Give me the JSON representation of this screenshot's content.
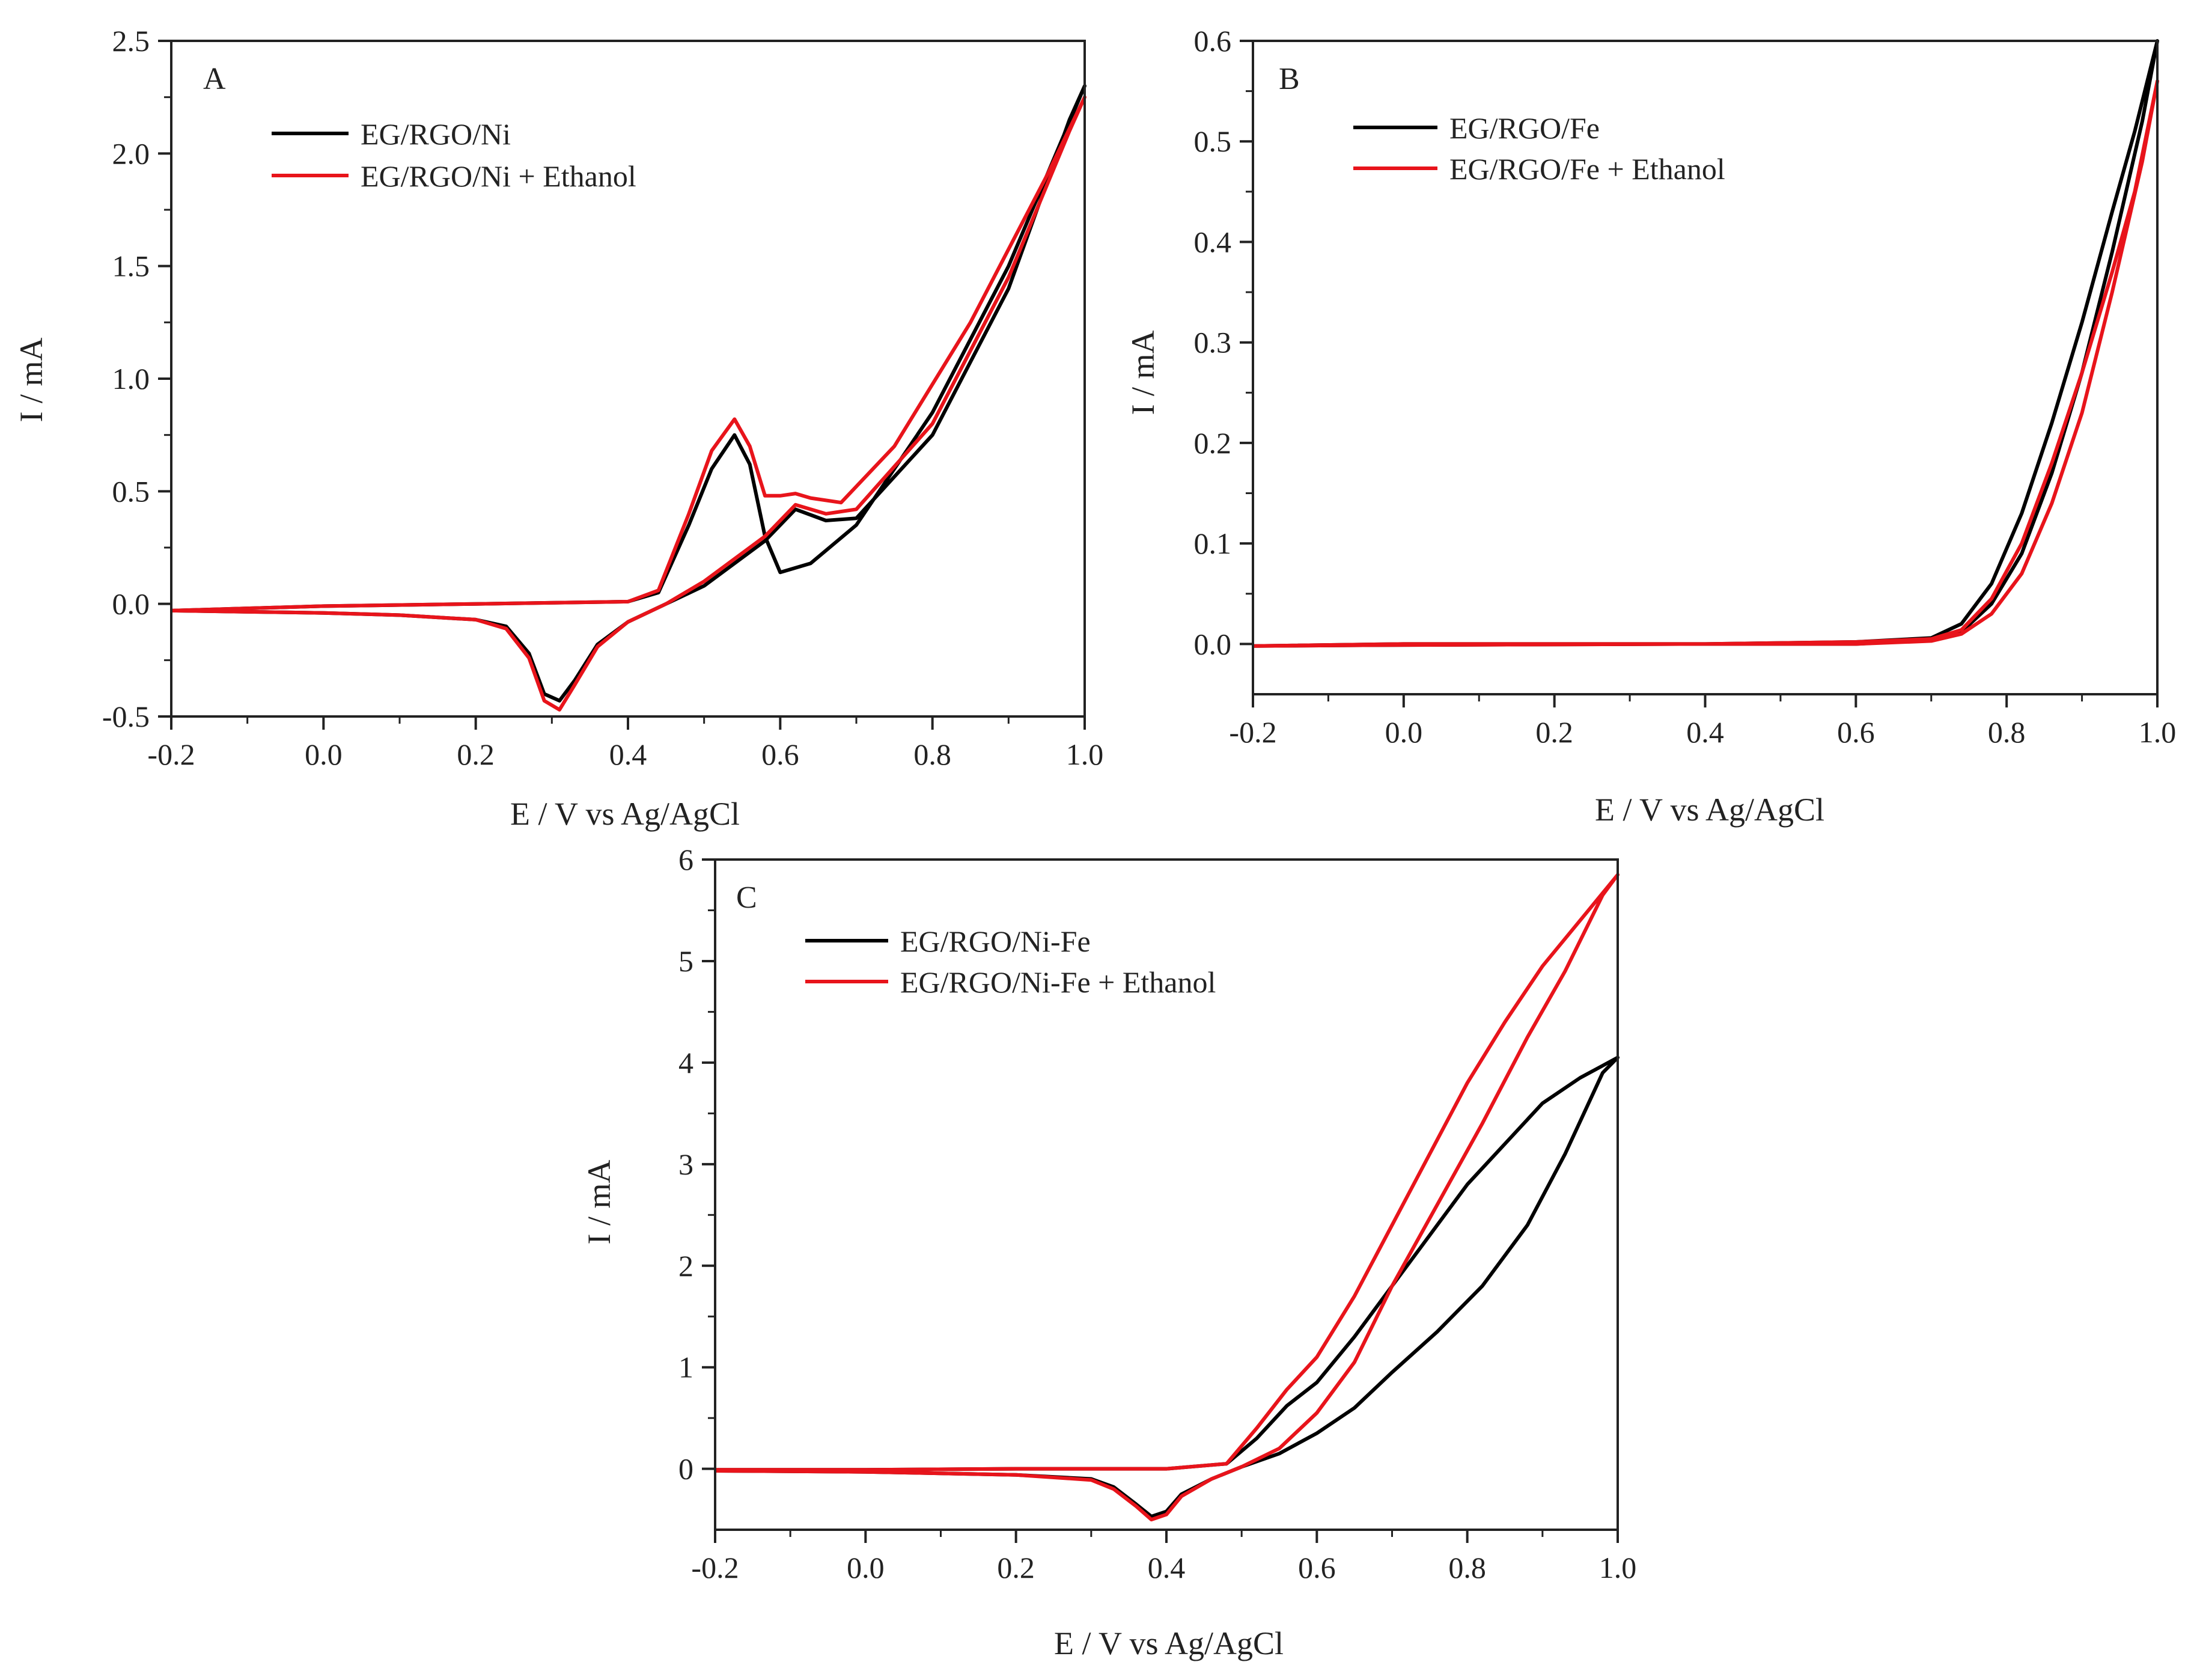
{
  "chart_data": [
    {
      "type": "line",
      "panel": "A",
      "xlabel": "E / V vs Ag/AgCl",
      "ylabel": "I / mA",
      "xlim": [
        -0.2,
        1.0
      ],
      "ylim": [
        -0.5,
        2.5
      ],
      "xticks": [
        -0.2,
        0.0,
        0.2,
        0.4,
        0.6,
        0.8,
        1.0
      ],
      "yticks": [
        -0.5,
        0.0,
        0.5,
        1.0,
        1.5,
        2.0,
        2.5
      ],
      "xtick_labels": [
        "-0.2",
        "0.0",
        "0.2",
        "0.4",
        "0.6",
        "0.8",
        "1.0"
      ],
      "ytick_labels": [
        "-0.5",
        "0.0",
        "0.5",
        "1.0",
        "1.5",
        "2.0",
        "2.5"
      ],
      "legend_position": "top-left",
      "series": [
        {
          "name": "EG/RGO/Ni",
          "color": "#000000",
          "x": [
            -0.2,
            0.0,
            0.2,
            0.4,
            0.44,
            0.48,
            0.51,
            0.54,
            0.56,
            0.58,
            0.6,
            0.64,
            0.7,
            0.8,
            0.9,
            1.0,
            0.98,
            0.9,
            0.8,
            0.7,
            0.66,
            0.62,
            0.58,
            0.5,
            0.45,
            0.4,
            0.36,
            0.33,
            0.31,
            0.29,
            0.27,
            0.24,
            0.2,
            0.1,
            0.0,
            -0.2
          ],
          "y": [
            -0.03,
            -0.01,
            0.0,
            0.01,
            0.05,
            0.35,
            0.6,
            0.75,
            0.62,
            0.3,
            0.14,
            0.18,
            0.35,
            0.85,
            1.5,
            2.3,
            2.15,
            1.4,
            0.75,
            0.38,
            0.37,
            0.42,
            0.28,
            0.08,
            0.0,
            -0.08,
            -0.18,
            -0.34,
            -0.43,
            -0.4,
            -0.22,
            -0.1,
            -0.07,
            -0.05,
            -0.04,
            -0.03
          ]
        },
        {
          "name": "EG/RGO/Ni + Ethanol",
          "color": "#e8141b",
          "x": [
            -0.2,
            0.0,
            0.2,
            0.4,
            0.44,
            0.48,
            0.51,
            0.54,
            0.56,
            0.58,
            0.6,
            0.62,
            0.64,
            0.68,
            0.75,
            0.85,
            0.95,
            1.0,
            0.98,
            0.9,
            0.8,
            0.7,
            0.66,
            0.62,
            0.58,
            0.5,
            0.45,
            0.4,
            0.36,
            0.33,
            0.31,
            0.29,
            0.27,
            0.24,
            0.2,
            0.1,
            0.0,
            -0.2
          ],
          "y": [
            -0.03,
            -0.01,
            0.0,
            0.01,
            0.06,
            0.4,
            0.68,
            0.82,
            0.7,
            0.48,
            0.48,
            0.49,
            0.47,
            0.45,
            0.7,
            1.25,
            1.9,
            2.25,
            2.1,
            1.45,
            0.8,
            0.42,
            0.4,
            0.44,
            0.3,
            0.1,
            0.0,
            -0.08,
            -0.19,
            -0.36,
            -0.47,
            -0.43,
            -0.24,
            -0.11,
            -0.07,
            -0.05,
            -0.04,
            -0.03
          ]
        }
      ]
    },
    {
      "type": "line",
      "panel": "B",
      "xlabel": "E / V vs Ag/AgCl",
      "ylabel": "I / mA",
      "xlim": [
        -0.2,
        1.0
      ],
      "ylim": [
        -0.05,
        0.6
      ],
      "xticks": [
        -0.2,
        0.0,
        0.2,
        0.4,
        0.6,
        0.8,
        1.0
      ],
      "yticks": [
        0.0,
        0.1,
        0.2,
        0.3,
        0.4,
        0.5,
        0.6
      ],
      "xtick_labels": [
        "-0.2",
        "0.0",
        "0.2",
        "0.4",
        "0.6",
        "0.8",
        "1.0"
      ],
      "ytick_labels": [
        "0.0",
        "0.1",
        "0.2",
        "0.3",
        "0.4",
        "0.5",
        "0.6"
      ],
      "legend_position": "top-left",
      "series": [
        {
          "name": "EG/RGO/Fe",
          "color": "#000000",
          "x": [
            -0.2,
            0.0,
            0.4,
            0.6,
            0.7,
            0.74,
            0.78,
            0.82,
            0.86,
            0.9,
            0.94,
            0.97,
            1.0,
            0.98,
            0.94,
            0.9,
            0.86,
            0.82,
            0.78,
            0.74,
            0.7,
            0.6,
            0.4,
            0.0,
            -0.2
          ],
          "y": [
            -0.002,
            0.0,
            0.0,
            0.002,
            0.006,
            0.02,
            0.06,
            0.13,
            0.22,
            0.32,
            0.43,
            0.51,
            0.6,
            0.52,
            0.39,
            0.27,
            0.17,
            0.09,
            0.04,
            0.012,
            0.004,
            0.0,
            0.0,
            -0.001,
            -0.002
          ]
        },
        {
          "name": "EG/RGO/Fe + Ethanol",
          "color": "#e8141b",
          "x": [
            -0.2,
            0.0,
            0.4,
            0.6,
            0.7,
            0.74,
            0.78,
            0.82,
            0.86,
            0.9,
            0.94,
            0.97,
            1.0,
            0.98,
            0.94,
            0.9,
            0.86,
            0.82,
            0.78,
            0.74,
            0.7,
            0.6,
            0.4,
            0.0,
            -0.2
          ],
          "y": [
            -0.002,
            0.0,
            0.0,
            0.002,
            0.005,
            0.014,
            0.045,
            0.1,
            0.18,
            0.27,
            0.37,
            0.45,
            0.56,
            0.48,
            0.35,
            0.23,
            0.14,
            0.07,
            0.03,
            0.01,
            0.003,
            0.0,
            0.0,
            -0.001,
            -0.002
          ]
        }
      ]
    },
    {
      "type": "line",
      "panel": "C",
      "xlabel": "E / V vs Ag/AgCl",
      "ylabel": "I / mA",
      "xlim": [
        -0.2,
        1.0
      ],
      "ylim": [
        -0.6,
        6.0
      ],
      "xticks": [
        -0.2,
        0.0,
        0.2,
        0.4,
        0.6,
        0.8,
        1.0
      ],
      "yticks": [
        0,
        1,
        2,
        3,
        4,
        5,
        6
      ],
      "xtick_labels": [
        "-0.2",
        "0.0",
        "0.2",
        "0.4",
        "0.6",
        "0.8",
        "1.0"
      ],
      "ytick_labels": [
        "0",
        "1",
        "2",
        "3",
        "4",
        "5",
        "6"
      ],
      "legend_position": "top-left",
      "series": [
        {
          "name": "EG/RGO/Ni-Fe",
          "color": "#000000",
          "x": [
            -0.2,
            0.0,
            0.2,
            0.4,
            0.48,
            0.52,
            0.56,
            0.6,
            0.65,
            0.7,
            0.75,
            0.8,
            0.85,
            0.9,
            0.95,
            1.0,
            0.98,
            0.93,
            0.88,
            0.82,
            0.76,
            0.7,
            0.65,
            0.6,
            0.55,
            0.5,
            0.46,
            0.42,
            0.4,
            0.38,
            0.36,
            0.33,
            0.3,
            0.2,
            0.0,
            -0.2
          ],
          "y": [
            -0.01,
            -0.01,
            0.0,
            0.0,
            0.05,
            0.3,
            0.62,
            0.85,
            1.3,
            1.8,
            2.3,
            2.8,
            3.2,
            3.6,
            3.85,
            4.05,
            3.9,
            3.1,
            2.4,
            1.8,
            1.35,
            0.95,
            0.6,
            0.35,
            0.15,
            0.02,
            -0.1,
            -0.25,
            -0.42,
            -0.47,
            -0.35,
            -0.18,
            -0.1,
            -0.06,
            -0.03,
            -0.02
          ]
        },
        {
          "name": "EG/RGO/Ni-Fe + Ethanol",
          "color": "#e8141b",
          "x": [
            -0.2,
            0.0,
            0.2,
            0.4,
            0.48,
            0.52,
            0.56,
            0.6,
            0.65,
            0.7,
            0.75,
            0.8,
            0.85,
            0.9,
            0.95,
            1.0,
            0.98,
            0.93,
            0.88,
            0.82,
            0.76,
            0.7,
            0.65,
            0.6,
            0.55,
            0.5,
            0.46,
            0.42,
            0.4,
            0.38,
            0.36,
            0.33,
            0.3,
            0.2,
            0.0,
            -0.2
          ],
          "y": [
            -0.01,
            -0.01,
            0.0,
            0.0,
            0.05,
            0.4,
            0.78,
            1.1,
            1.7,
            2.4,
            3.1,
            3.8,
            4.4,
            4.95,
            5.4,
            5.85,
            5.65,
            4.9,
            4.25,
            3.4,
            2.6,
            1.8,
            1.05,
            0.55,
            0.2,
            0.02,
            -0.1,
            -0.27,
            -0.45,
            -0.5,
            -0.37,
            -0.2,
            -0.11,
            -0.06,
            -0.03,
            -0.02
          ]
        }
      ]
    }
  ]
}
